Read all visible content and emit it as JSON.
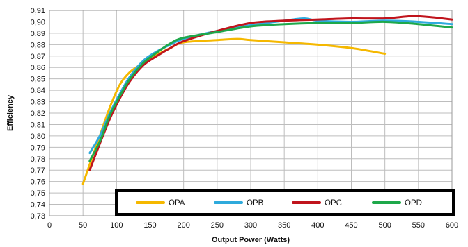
{
  "chart_data": {
    "type": "line",
    "title": "",
    "xlabel": "Output Power (Watts)",
    "ylabel": "Efficiency",
    "xlim": [
      0,
      600
    ],
    "ylim": [
      0.73,
      0.91
    ],
    "x_ticks": [
      "0",
      "50",
      "100",
      "150",
      "200",
      "250",
      "300",
      "350",
      "400",
      "450",
      "500",
      "550",
      "600"
    ],
    "y_ticks": [
      "0,73",
      "0,74",
      "0,75",
      "0,76",
      "0,77",
      "0,78",
      "0,79",
      "0,80",
      "0,81",
      "0,82",
      "0,83",
      "0,84",
      "0,85",
      "0,86",
      "0,87",
      "0,88",
      "0,89",
      "0,90",
      "0,91"
    ],
    "grid": true,
    "legend_position": "bottom-right inside plot",
    "series": [
      {
        "name": "OPA",
        "color": "#F5B800",
        "points": [
          [
            50,
            0.758
          ],
          [
            60,
            0.775
          ],
          [
            75,
            0.8
          ],
          [
            90,
            0.825
          ],
          [
            105,
            0.845
          ],
          [
            120,
            0.856
          ],
          [
            140,
            0.864
          ],
          [
            160,
            0.871
          ],
          [
            180,
            0.877
          ],
          [
            200,
            0.882
          ],
          [
            250,
            0.884
          ],
          [
            280,
            0.885
          ],
          [
            300,
            0.884
          ],
          [
            350,
            0.882
          ],
          [
            400,
            0.88
          ],
          [
            450,
            0.877
          ],
          [
            500,
            0.872
          ]
        ]
      },
      {
        "name": "OPB",
        "color": "#2EAADC",
        "points": [
          [
            60,
            0.785
          ],
          [
            75,
            0.8
          ],
          [
            90,
            0.82
          ],
          [
            105,
            0.837
          ],
          [
            120,
            0.852
          ],
          [
            140,
            0.866
          ],
          [
            160,
            0.874
          ],
          [
            180,
            0.88
          ],
          [
            200,
            0.885
          ],
          [
            250,
            0.892
          ],
          [
            300,
            0.897
          ],
          [
            350,
            0.901
          ],
          [
            380,
            0.903
          ],
          [
            400,
            0.901
          ],
          [
            450,
            0.9
          ],
          [
            500,
            0.901
          ],
          [
            550,
            0.9
          ],
          [
            600,
            0.898
          ]
        ]
      },
      {
        "name": "OPC",
        "color": "#C0141C",
        "points": [
          [
            60,
            0.77
          ],
          [
            75,
            0.793
          ],
          [
            90,
            0.815
          ],
          [
            105,
            0.833
          ],
          [
            120,
            0.848
          ],
          [
            140,
            0.862
          ],
          [
            160,
            0.87
          ],
          [
            180,
            0.877
          ],
          [
            200,
            0.883
          ],
          [
            250,
            0.892
          ],
          [
            300,
            0.899
          ],
          [
            350,
            0.901
          ],
          [
            400,
            0.902
          ],
          [
            450,
            0.903
          ],
          [
            500,
            0.903
          ],
          [
            540,
            0.905
          ],
          [
            570,
            0.904
          ],
          [
            600,
            0.902
          ]
        ]
      },
      {
        "name": "OPD",
        "color": "#1EA84A",
        "points": [
          [
            60,
            0.778
          ],
          [
            75,
            0.795
          ],
          [
            90,
            0.818
          ],
          [
            105,
            0.835
          ],
          [
            120,
            0.85
          ],
          [
            140,
            0.864
          ],
          [
            160,
            0.873
          ],
          [
            180,
            0.881
          ],
          [
            200,
            0.886
          ],
          [
            250,
            0.891
          ],
          [
            300,
            0.896
          ],
          [
            350,
            0.898
          ],
          [
            400,
            0.899
          ],
          [
            450,
            0.899
          ],
          [
            500,
            0.9
          ],
          [
            550,
            0.898
          ],
          [
            600,
            0.895
          ]
        ]
      }
    ]
  }
}
